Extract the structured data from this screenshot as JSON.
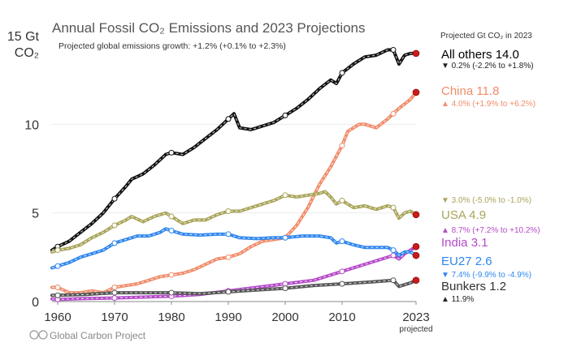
{
  "chart_data": {
    "type": "line",
    "title": "Annual Fossil CO₂ Emissions and 2023 Projections",
    "subtitle": "Projected global emissions growth: +1.2% (+0.1% to +2.3%)",
    "ylabel": [
      "15 Gt",
      "CO₂"
    ],
    "legend_header": "Projected Gt CO₂ in 2023",
    "x_end_label": "projected",
    "credit": "Global Carbon Project",
    "xlim": [
      1959,
      2023
    ],
    "ylim": [
      0,
      15
    ],
    "yticks": [
      "0",
      "5",
      "10"
    ],
    "xticks": [
      "1960",
      "1970",
      "1980",
      "1990",
      "2000",
      "2010",
      "2023"
    ],
    "series": [
      {
        "name": "All others",
        "value_label": "14.0",
        "arrow": "▼",
        "change": "0.2% (-2.2% to +1.8%)",
        "color": "#111111",
        "x": [
          1959,
          1960,
          1962,
          1964,
          1966,
          1968,
          1970,
          1972,
          1973,
          1975,
          1977,
          1979,
          1980,
          1982,
          1984,
          1986,
          1988,
          1990,
          1991,
          1992,
          1994,
          1996,
          1998,
          2000,
          2002,
          2004,
          2006,
          2008,
          2009,
          2010,
          2012,
          2014,
          2016,
          2018,
          2019,
          2020,
          2021,
          2022,
          2023
        ],
        "values": [
          2.9,
          3.1,
          3.4,
          3.9,
          4.4,
          5.0,
          5.8,
          6.5,
          6.9,
          7.2,
          7.7,
          8.3,
          8.4,
          8.3,
          8.7,
          9.2,
          9.7,
          10.3,
          10.6,
          9.8,
          9.7,
          9.9,
          10.1,
          10.5,
          10.9,
          11.4,
          12.0,
          12.5,
          12.3,
          12.9,
          13.4,
          13.8,
          13.9,
          14.2,
          14.2,
          13.4,
          13.9,
          14.0,
          14.0
        ]
      },
      {
        "name": "China",
        "value_label": "11.8",
        "arrow": "▲",
        "change": "4.0% (+1.9% to +6.2%)",
        "color": "#f08c6a",
        "x": [
          1959,
          1960,
          1962,
          1964,
          1966,
          1968,
          1970,
          1972,
          1974,
          1976,
          1978,
          1980,
          1982,
          1984,
          1986,
          1988,
          1990,
          1992,
          1994,
          1996,
          1998,
          2000,
          2002,
          2004,
          2006,
          2008,
          2010,
          2011,
          2012,
          2013,
          2014,
          2016,
          2018,
          2020,
          2022,
          2023
        ],
        "values": [
          0.8,
          0.8,
          0.5,
          0.5,
          0.6,
          0.5,
          0.8,
          0.9,
          1.0,
          1.2,
          1.4,
          1.5,
          1.6,
          1.8,
          2.1,
          2.4,
          2.5,
          2.7,
          3.1,
          3.4,
          3.5,
          3.6,
          4.3,
          5.3,
          6.6,
          7.6,
          8.8,
          9.6,
          9.8,
          10.0,
          10.0,
          9.8,
          10.3,
          10.9,
          11.4,
          11.8
        ]
      },
      {
        "name": "USA",
        "value_label": "4.9",
        "arrow": "▼",
        "change": "3.0% (-5.0% to -1.0%)",
        "color": "#a8a45a",
        "x": [
          1959,
          1960,
          1962,
          1964,
          1966,
          1968,
          1970,
          1972,
          1973,
          1975,
          1977,
          1979,
          1980,
          1982,
          1984,
          1986,
          1988,
          1990,
          1992,
          1994,
          1996,
          1998,
          2000,
          2002,
          2004,
          2006,
          2007,
          2008,
          2009,
          2010,
          2012,
          2014,
          2016,
          2018,
          2019,
          2020,
          2021,
          2022,
          2023
        ],
        "values": [
          2.8,
          2.9,
          3.0,
          3.2,
          3.6,
          3.9,
          4.3,
          4.6,
          4.8,
          4.5,
          4.8,
          5.0,
          4.8,
          4.4,
          4.6,
          4.6,
          4.9,
          5.1,
          5.1,
          5.3,
          5.5,
          5.7,
          6.0,
          5.9,
          6.0,
          6.1,
          6.2,
          5.9,
          5.5,
          5.7,
          5.3,
          5.4,
          5.2,
          5.4,
          5.3,
          4.7,
          5.0,
          5.1,
          4.9
        ]
      },
      {
        "name": "India",
        "value_label": "3.1",
        "arrow": "▲",
        "change": "8.7% (+7.2% to +10.2%)",
        "color": "#b54ac8",
        "x": [
          1959,
          1960,
          1965,
          1970,
          1975,
          1980,
          1985,
          1990,
          1995,
          2000,
          2005,
          2010,
          2015,
          2019,
          2020,
          2021,
          2022,
          2023
        ],
        "values": [
          0.15,
          0.12,
          0.17,
          0.2,
          0.25,
          0.3,
          0.4,
          0.6,
          0.8,
          1.0,
          1.2,
          1.7,
          2.2,
          2.6,
          2.4,
          2.7,
          2.9,
          3.1
        ]
      },
      {
        "name": "EU27",
        "value_label": "2.6",
        "arrow": "▼",
        "change": "7.4% (-9.9% to -4.9%)",
        "color": "#2f86ee",
        "x": [
          1959,
          1960,
          1962,
          1964,
          1966,
          1968,
          1970,
          1972,
          1974,
          1976,
          1978,
          1979,
          1980,
          1982,
          1985,
          1988,
          1990,
          1992,
          1995,
          1998,
          2000,
          2003,
          2006,
          2008,
          2009,
          2010,
          2012,
          2014,
          2016,
          2018,
          2019,
          2020,
          2021,
          2022,
          2023
        ],
        "values": [
          1.9,
          2.0,
          2.2,
          2.5,
          2.7,
          2.9,
          3.3,
          3.5,
          3.7,
          3.7,
          3.9,
          4.1,
          4.0,
          3.8,
          3.75,
          3.8,
          3.8,
          3.6,
          3.55,
          3.6,
          3.6,
          3.7,
          3.7,
          3.6,
          3.3,
          3.4,
          3.2,
          3.05,
          3.05,
          3.05,
          2.9,
          2.6,
          2.8,
          2.8,
          2.6
        ]
      },
      {
        "name": "Bunkers",
        "value_label": "1.2",
        "arrow": "▲",
        "change": "11.9%",
        "color": "#555555",
        "x": [
          1959,
          1960,
          1965,
          1970,
          1975,
          1980,
          1985,
          1990,
          1995,
          2000,
          2005,
          2010,
          2015,
          2019,
          2020,
          2021,
          2022,
          2023
        ],
        "values": [
          0.35,
          0.35,
          0.4,
          0.5,
          0.5,
          0.5,
          0.45,
          0.55,
          0.65,
          0.75,
          0.9,
          1.0,
          1.1,
          1.2,
          0.85,
          0.95,
          1.05,
          1.2
        ]
      }
    ]
  }
}
